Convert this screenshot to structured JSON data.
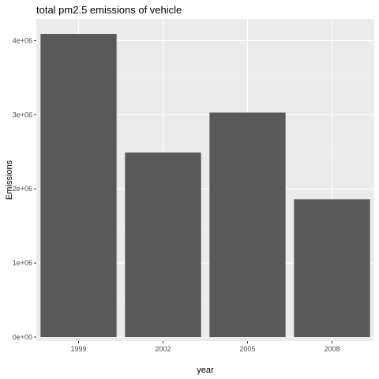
{
  "chart_data": {
    "type": "bar",
    "title": "total pm2.5 emissions of vehicle",
    "xlabel": "year",
    "ylabel": "Emissions",
    "categories": [
      "1999",
      "2002",
      "2005",
      "2008"
    ],
    "values": [
      4090000,
      2490000,
      3030000,
      1860000
    ],
    "ylim": [
      0,
      4090000
    ],
    "yticks": [
      0,
      1000000,
      2000000,
      3000000,
      4000000
    ],
    "ytick_labels": [
      "0e+00",
      "1e+06",
      "2e+06",
      "3e+06",
      "4e+06"
    ],
    "grid": true,
    "legend": "none",
    "colors": {
      "panel_background": "#ebebeb",
      "grid_major": "#ffffff",
      "grid_minor": "#f5f5f5",
      "bar_fill": "#595959",
      "tick_text": "#4d4d4d",
      "tick_mark": "#333333"
    }
  }
}
